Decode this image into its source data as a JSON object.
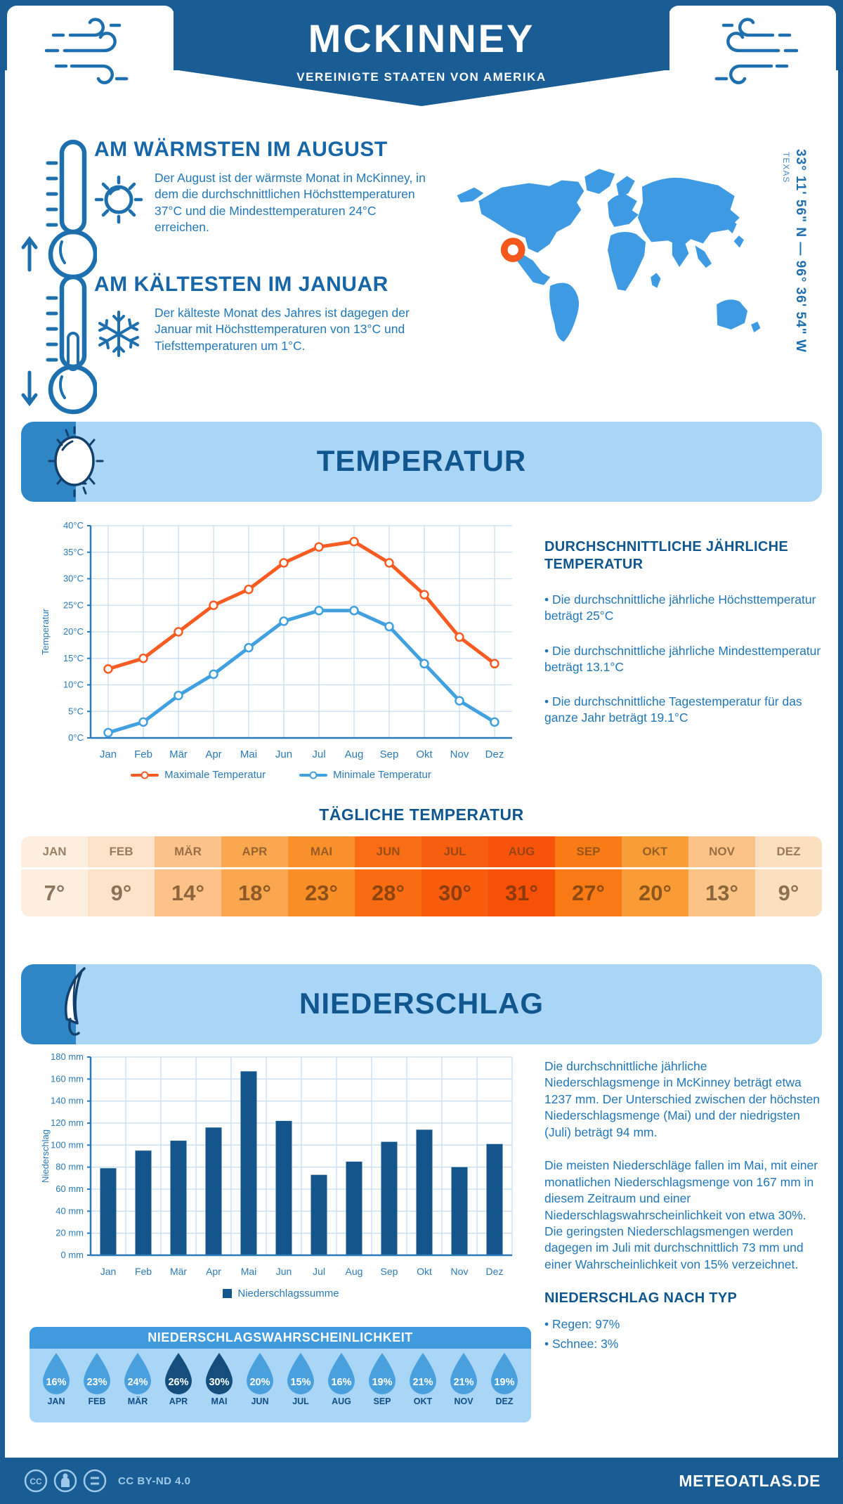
{
  "header": {
    "title": "MCKINNEY",
    "subtitle": "VEREINIGTE STAATEN VON AMERIKA"
  },
  "location": {
    "coords": "33° 11' 56\" N — 96° 36' 54\" W",
    "region": "TEXAS"
  },
  "warmest": {
    "title": "AM WÄRMSTEN IM AUGUST",
    "text": "Der August ist der wärmste Monat in McKinney, in dem die durchschnittlichen Höchsttemperaturen 37°C und die Mindesttemperaturen 24°C erreichen."
  },
  "coldest": {
    "title": "AM KÄLTESTEN IM JANUAR",
    "text": "Der kälteste Monat des Jahres ist dagegen der Januar mit Höchsttemperaturen von 13°C und Tiefsttemperaturen um 1°C."
  },
  "temperature": {
    "banner": "TEMPERATUR",
    "annual_heading": "DURCHSCHNITTLICHE JÄHRLICHE TEMPERATUR",
    "bullets": [
      "• Die durchschnittliche jährliche Höchsttemperatur beträgt 25°C",
      "• Die durchschnittliche jährliche Mindesttemperatur beträgt 13.1°C",
      "• Die durchschnittliche Tagestemperatur für das ganze Jahr beträgt 19.1°C"
    ],
    "daily_heading": "TÄGLICHE TEMPERATUR",
    "daily_months": [
      "JAN",
      "FEB",
      "MÄR",
      "APR",
      "MAI",
      "JUN",
      "JUL",
      "AUG",
      "SEP",
      "OKT",
      "NOV",
      "DEZ"
    ],
    "daily_values": [
      "7°",
      "9°",
      "14°",
      "18°",
      "23°",
      "28°",
      "30°",
      "31°",
      "27°",
      "20°",
      "13°",
      "9°"
    ],
    "daily_colors": [
      "#fdeedd",
      "#fce3c9",
      "#fcc28a",
      "#faa64e",
      "#fa8f28",
      "#f96c12",
      "#f85d0d",
      "#f75108",
      "#f97a14",
      "#f99c35",
      "#fbc386",
      "#fcdfbf"
    ]
  },
  "precipitation": {
    "banner": "NIEDERSCHLAG",
    "paragraphs": [
      "Die durchschnittliche jährliche Niederschlagsmenge in McKinney beträgt etwa 1237 mm. Der Unterschied zwischen der höchsten Niederschlagsmenge (Mai) und der niedrigsten (Juli) beträgt 94 mm.",
      "Die meisten Niederschläge fallen im Mai, mit einer monatlichen Niederschlagsmenge von 167 mm in diesem Zeitraum und einer Niederschlagswahrscheinlichkeit von etwa 30%. Die geringsten Niederschlagsmengen werden dagegen im Juli mit durchschnittlich 73 mm und einer Wahrscheinlichkeit von 15% verzeichnet."
    ],
    "type_heading": "NIEDERSCHLAG NACH TYP",
    "types": [
      "• Regen: 97%",
      "• Schnee: 3%"
    ],
    "probability": {
      "heading": "NIEDERSCHLAGSWAHRSCHEINLICHKEIT",
      "months": [
        "JAN",
        "FEB",
        "MÄR",
        "APR",
        "MAI",
        "JUN",
        "JUL",
        "AUG",
        "SEP",
        "OKT",
        "NOV",
        "DEZ"
      ],
      "values": [
        "16%",
        "23%",
        "24%",
        "26%",
        "30%",
        "20%",
        "15%",
        "16%",
        "19%",
        "21%",
        "21%",
        "19%"
      ],
      "dark": [
        false,
        false,
        false,
        true,
        true,
        false,
        false,
        false,
        false,
        false,
        false,
        false
      ],
      "drop_color": "#4aa0dd",
      "drop_color_dark": "#134e7d"
    }
  },
  "chart_data": [
    {
      "type": "line",
      "title": "Monatliche Temperatur",
      "categories": [
        "Jan",
        "Feb",
        "Mär",
        "Apr",
        "Mai",
        "Jun",
        "Jul",
        "Aug",
        "Sep",
        "Okt",
        "Nov",
        "Dez"
      ],
      "series": [
        {
          "name": "Maximale Temperatur",
          "color": "#f85c23",
          "values": [
            13,
            15,
            20,
            25,
            28,
            33,
            36,
            37,
            33,
            27,
            19,
            14
          ]
        },
        {
          "name": "Minimale Temperatur",
          "color": "#41a0e0",
          "values": [
            1,
            3,
            8,
            12,
            17,
            22,
            24,
            24,
            21,
            14,
            7,
            3
          ]
        }
      ],
      "xlabel": "",
      "ylabel": "Temperatur",
      "ylim": [
        0,
        40
      ],
      "ytick_step": 5,
      "ytick_suffix": "°C",
      "grid": true,
      "legend_position": "bottom"
    },
    {
      "type": "bar",
      "title": "Monatlicher Niederschlag",
      "categories": [
        "Jan",
        "Feb",
        "Mär",
        "Apr",
        "Mai",
        "Jun",
        "Jul",
        "Aug",
        "Sep",
        "Okt",
        "Nov",
        "Dez"
      ],
      "values": [
        79,
        95,
        104,
        116,
        167,
        122,
        73,
        85,
        103,
        114,
        80,
        101
      ],
      "series_name": "Niederschlagssumme",
      "color": "#14568c",
      "xlabel": "",
      "ylabel": "Niederschlag",
      "ylim": [
        0,
        180
      ],
      "ytick_step": 20,
      "ytick_suffix": " mm",
      "grid": true,
      "legend_position": "bottom"
    }
  ],
  "footer": {
    "license": "CC BY-ND 4.0",
    "site": "METEOATLAS.DE"
  },
  "colors": {
    "primary_dark": "#1a5c94",
    "heading_blue": "#10568f",
    "body_blue": "#2177b8",
    "banner_light": "#a9d5f7",
    "banner_accent": "#2e86c6",
    "map_blue": "#3d9ae3",
    "marker_orange": "#f4581d",
    "grid": "#c8ddf0"
  }
}
